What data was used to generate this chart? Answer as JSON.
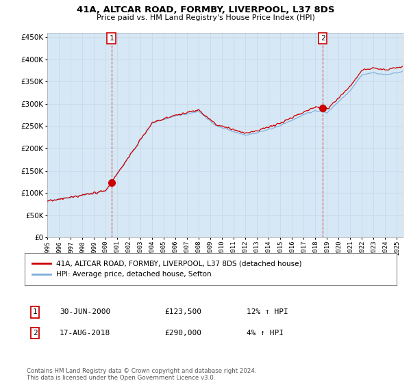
{
  "title": "41A, ALTCAR ROAD, FORMBY, LIVERPOOL, L37 8DS",
  "subtitle": "Price paid vs. HM Land Registry's House Price Index (HPI)",
  "ytick_values": [
    0,
    50000,
    100000,
    150000,
    200000,
    250000,
    300000,
    350000,
    400000,
    450000
  ],
  "ylim": [
    0,
    460000
  ],
  "xlim_start": 1995.0,
  "xlim_end": 2025.5,
  "hpi_color": "#7aaddc",
  "price_color": "#cc0000",
  "fill_color": "#d6e8f5",
  "marker1_x": 2000.5,
  "marker1_y": 123500,
  "marker2_x": 2018.63,
  "marker2_y": 290000,
  "legend_line1": "41A, ALTCAR ROAD, FORMBY, LIVERPOOL, L37 8DS (detached house)",
  "legend_line2": "HPI: Average price, detached house, Sefton",
  "annotation1_num": "1",
  "annotation1_date": "30-JUN-2000",
  "annotation1_price": "£123,500",
  "annotation1_hpi": "12% ↑ HPI",
  "annotation2_num": "2",
  "annotation2_date": "17-AUG-2018",
  "annotation2_price": "£290,000",
  "annotation2_hpi": "4% ↑ HPI",
  "footer": "Contains HM Land Registry data © Crown copyright and database right 2024.\nThis data is licensed under the Open Government Licence v3.0.",
  "background_color": "#ffffff",
  "grid_color": "#c8d8e8"
}
